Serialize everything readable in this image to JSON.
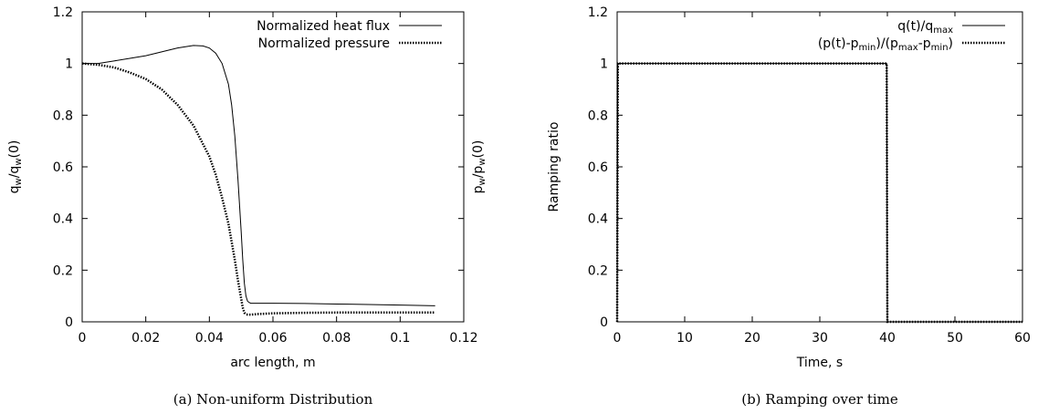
{
  "chart_data": [
    {
      "type": "line",
      "caption": "(a) Non-uniform Distribution",
      "xlabel": "arc length, m",
      "ylabel_left": "q_w/q_w(0)",
      "ylabel_right": "p_w/p_w(0)",
      "xlim": [
        0,
        0.12
      ],
      "ylim": [
        0,
        1.2
      ],
      "xticks": [
        "0",
        "0.02",
        "0.04",
        "0.06",
        "0.08",
        "0.1",
        "0.12"
      ],
      "yticks": [
        "0",
        "0.2",
        "0.4",
        "0.6",
        "0.8",
        "1",
        "1.2"
      ],
      "legend_position": "top-right",
      "series": [
        {
          "name": "Normalized heat flux",
          "style": "solid",
          "x": [
            0,
            0.005,
            0.01,
            0.015,
            0.02,
            0.025,
            0.03,
            0.035,
            0.038,
            0.04,
            0.042,
            0.044,
            0.046,
            0.047,
            0.048,
            0.049,
            0.05,
            0.0505,
            0.051,
            0.0515,
            0.052,
            0.0525,
            0.053,
            0.055,
            0.06,
            0.07,
            0.08,
            0.09,
            0.1,
            0.111
          ],
          "y": [
            1.0,
            1.0,
            1.01,
            1.02,
            1.03,
            1.045,
            1.06,
            1.07,
            1.068,
            1.06,
            1.04,
            1.0,
            0.92,
            0.84,
            0.72,
            0.55,
            0.35,
            0.24,
            0.15,
            0.1,
            0.08,
            0.075,
            0.072,
            0.072,
            0.072,
            0.071,
            0.069,
            0.067,
            0.065,
            0.062
          ]
        },
        {
          "name": "Normalized pressure",
          "style": "dotted",
          "x": [
            0,
            0.005,
            0.01,
            0.015,
            0.02,
            0.025,
            0.03,
            0.035,
            0.04,
            0.042,
            0.044,
            0.046,
            0.047,
            0.048,
            0.049,
            0.05,
            0.0505,
            0.051,
            0.0515,
            0.052,
            0.053,
            0.055,
            0.06,
            0.07,
            0.08,
            0.09,
            0.1,
            0.111
          ],
          "y": [
            1.0,
            0.995,
            0.985,
            0.965,
            0.94,
            0.9,
            0.84,
            0.76,
            0.64,
            0.57,
            0.48,
            0.38,
            0.31,
            0.24,
            0.16,
            0.09,
            0.055,
            0.035,
            0.03,
            0.028,
            0.028,
            0.03,
            0.033,
            0.035,
            0.036,
            0.036,
            0.036,
            0.036
          ]
        }
      ]
    },
    {
      "type": "line",
      "caption": "(b) Ramping over time",
      "xlabel": "Time, s",
      "ylabel": "Ramping ratio",
      "xlim": [
        0,
        60
      ],
      "ylim": [
        0,
        1.2
      ],
      "xticks": [
        "0",
        "10",
        "20",
        "30",
        "40",
        "50",
        "60"
      ],
      "yticks": [
        "0",
        "0.2",
        "0.4",
        "0.6",
        "0.8",
        "1",
        "1.2"
      ],
      "legend_position": "top-right",
      "series": [
        {
          "name": "q(t)/q_max",
          "style": "solid",
          "x": [
            0,
            0.1,
            39.9,
            40,
            60
          ],
          "y": [
            0,
            1,
            1,
            0,
            0
          ]
        },
        {
          "name": "(p(t)-p_min)/(p_max-p_min)",
          "style": "dotted",
          "x": [
            0,
            0.1,
            39.9,
            40,
            60
          ],
          "y": [
            0,
            1,
            1,
            0,
            0
          ]
        }
      ]
    }
  ]
}
